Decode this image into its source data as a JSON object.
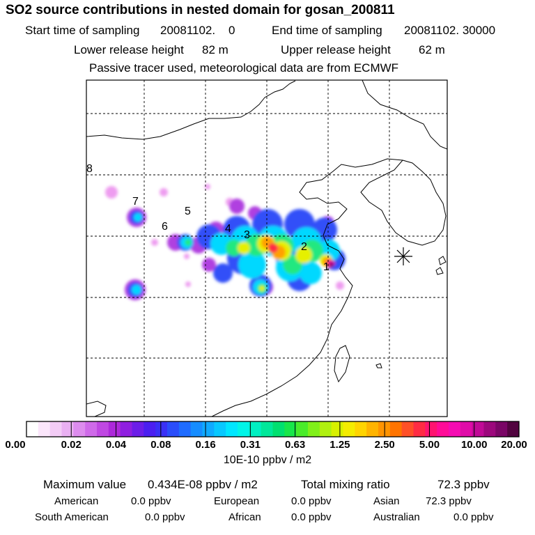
{
  "title": "SO2 source contributions in nested domain for gosan_200811",
  "sampling": {
    "start_label": "Start time of sampling",
    "start_value": "20081102.    0",
    "end_label": "End time of sampling",
    "end_value": "20081102. 30000"
  },
  "release": {
    "lower_label": "Lower release height",
    "lower_value": "82 m",
    "upper_label": "Upper release height",
    "upper_value": "62 m"
  },
  "note": "Passive tracer used, meteorological data are from ECMWF",
  "chart_data": {
    "type": "heatmap",
    "title": "SO2 source contributions in nested domain for gosan_200811",
    "units": "10E-10 ppbv / m2",
    "colorbar_ticks": [
      "0.00",
      "0.02",
      "0.04",
      "0.08",
      "0.16",
      "0.31",
      "0.63",
      "1.25",
      "2.50",
      "5.00",
      "10.00",
      "20.00"
    ],
    "colorbar_colors": [
      "#ffffff",
      "#fbe6fb",
      "#f3ccf6",
      "#e9b0f2",
      "#dd8cee",
      "#cf6ae9",
      "#bf48e2",
      "#ad28da",
      "#8f1fe0",
      "#6c1ee8",
      "#4b1ff0",
      "#3a30f5",
      "#2a4dfa",
      "#1f6cff",
      "#168dff",
      "#10aaff",
      "#08c8ff",
      "#00e6ff",
      "#00f5e8",
      "#00f0c2",
      "#00e89a",
      "#00e070",
      "#18e64a",
      "#4aeb2a",
      "#80f01a",
      "#b0f010",
      "#d8f000",
      "#f4ec00",
      "#ffd400",
      "#ffb400",
      "#ff9400",
      "#ff7400",
      "#ff5028",
      "#ff2c44",
      "#ff1470",
      "#ff0c98",
      "#f50cb2",
      "#e00ca8",
      "#c00a96",
      "#9c087c",
      "#7a0666",
      "#520440"
    ],
    "source_labels": [
      "1",
      "2",
      "3",
      "4",
      "5",
      "6",
      "7",
      "8"
    ],
    "receptor": "Gosan",
    "maximum_label": "Maximum value",
    "maximum_value": "0.434E-08 ppbv / m2",
    "total_label": "Total mixing ratio",
    "total_value": "72.3 ppbv",
    "regions": [
      {
        "name": "American",
        "value": "0.0 ppbv"
      },
      {
        "name": "European",
        "value": "0.0 ppbv"
      },
      {
        "name": "Asian",
        "value": "72.3 ppbv"
      },
      {
        "name": "South American",
        "value": "0.0 ppbv"
      },
      {
        "name": "African",
        "value": "0.0 ppbv"
      },
      {
        "name": "Australian",
        "value": "0.0 ppbv"
      }
    ]
  }
}
